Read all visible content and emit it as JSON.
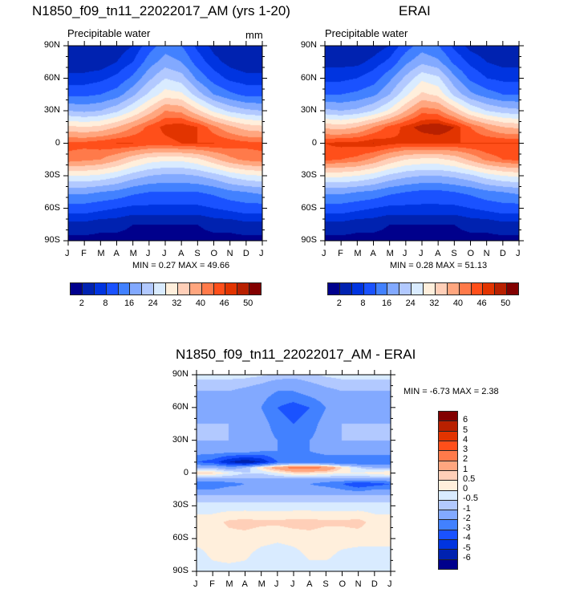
{
  "chart_data": [
    {
      "type": "heatmap",
      "title": "N1850_f09_tn11_22022017_AM (yrs 1-20)",
      "subtitle": "Precipitable water",
      "units": "mm",
      "stats": "MIN =   0.27 MAX =  49.66",
      "x_ticks": [
        "J",
        "F",
        "M",
        "A",
        "M",
        "J",
        "J",
        "A",
        "S",
        "O",
        "N",
        "D",
        "J"
      ],
      "y_ticks": [
        "90N",
        "60N",
        "30N",
        "0",
        "30S",
        "60S",
        "90S"
      ],
      "lats": [
        90,
        75,
        60,
        45,
        30,
        15,
        0,
        -15,
        -30,
        -45,
        -60,
        -75,
        -90
      ],
      "values": [
        [
          2,
          2,
          2,
          3,
          5,
          10,
          14,
          12,
          7,
          4,
          3,
          2
        ],
        [
          3,
          3,
          3,
          5,
          8,
          14,
          18,
          16,
          10,
          6,
          4,
          3
        ],
        [
          6,
          6,
          7,
          9,
          13,
          19,
          24,
          22,
          15,
          10,
          7,
          6
        ],
        [
          11,
          11,
          12,
          14,
          19,
          25,
          30,
          29,
          22,
          16,
          13,
          11
        ],
        [
          20,
          19,
          20,
          23,
          28,
          34,
          40,
          39,
          33,
          27,
          23,
          21
        ],
        [
          33,
          32,
          33,
          36,
          40,
          44,
          47,
          48,
          46,
          41,
          37,
          34
        ],
        [
          44,
          44,
          45,
          46,
          46,
          45,
          45,
          46,
          46,
          46,
          45,
          44
        ],
        [
          42,
          41,
          40,
          37,
          33,
          30,
          29,
          29,
          31,
          35,
          39,
          41
        ],
        [
          28,
          28,
          27,
          25,
          22,
          20,
          19,
          19,
          20,
          22,
          25,
          27
        ],
        [
          17,
          17,
          16,
          15,
          13,
          12,
          12,
          12,
          12,
          13,
          15,
          16
        ],
        [
          10,
          10,
          9,
          8,
          7,
          7,
          7,
          7,
          7,
          8,
          9,
          10
        ],
        [
          4,
          4,
          3,
          3,
          2,
          2,
          2,
          2,
          2,
          3,
          3,
          4
        ],
        [
          1,
          1,
          1,
          1,
          1,
          1,
          1,
          1,
          1,
          1,
          1,
          1
        ]
      ],
      "levels": [
        2,
        5,
        8,
        12,
        16,
        20,
        24,
        28,
        32,
        36,
        40,
        43,
        46,
        48,
        50
      ],
      "colorbar_labels": [
        "2",
        "8",
        "16",
        "24",
        "32",
        "40",
        "46",
        "50"
      ]
    },
    {
      "type": "heatmap",
      "title": "ERAI",
      "subtitle": "Precipitable water",
      "stats": "MIN =   0.28 MAX =  51.13",
      "x_ticks": [
        "J",
        "F",
        "M",
        "A",
        "M",
        "J",
        "J",
        "A",
        "S",
        "O",
        "N",
        "D",
        "J"
      ],
      "y_ticks": [
        "90N",
        "60N",
        "30N",
        "0",
        "30S",
        "60S",
        "90S"
      ],
      "lats": [
        90,
        75,
        60,
        45,
        30,
        15,
        0,
        -15,
        -30,
        -45,
        -60,
        -75,
        -90
      ],
      "values": [
        [
          2,
          2,
          2,
          3,
          5,
          10,
          14,
          12,
          7,
          4,
          3,
          2
        ],
        [
          4,
          4,
          4,
          6,
          9,
          15,
          19,
          17,
          11,
          7,
          5,
          4
        ],
        [
          7,
          7,
          8,
          10,
          15,
          21,
          27,
          25,
          17,
          11,
          8,
          7
        ],
        [
          12,
          12,
          13,
          15,
          20,
          27,
          33,
          31,
          23,
          17,
          14,
          12
        ],
        [
          21,
          20,
          21,
          24,
          29,
          36,
          42,
          41,
          35,
          28,
          24,
          22
        ],
        [
          35,
          34,
          36,
          40,
          44,
          47,
          49,
          50,
          48,
          43,
          39,
          36
        ],
        [
          46,
          47,
          47,
          48,
          47,
          46,
          46,
          46,
          46,
          46,
          46,
          46
        ],
        [
          44,
          43,
          42,
          39,
          35,
          32,
          31,
          31,
          33,
          37,
          41,
          43
        ],
        [
          29,
          29,
          28,
          26,
          23,
          21,
          20,
          20,
          21,
          23,
          26,
          28
        ],
        [
          17,
          17,
          16,
          15,
          13,
          12,
          11,
          11,
          12,
          13,
          15,
          16
        ],
        [
          10,
          10,
          9,
          8,
          7,
          7,
          7,
          7,
          7,
          8,
          9,
          10
        ],
        [
          4,
          4,
          3,
          3,
          2,
          2,
          2,
          2,
          2,
          3,
          3,
          4
        ],
        [
          1,
          1,
          1,
          1,
          1,
          1,
          1,
          1,
          1,
          1,
          1,
          1
        ]
      ],
      "levels": [
        2,
        5,
        8,
        12,
        16,
        20,
        24,
        28,
        32,
        36,
        40,
        43,
        46,
        48,
        50
      ],
      "colorbar_labels": [
        "2",
        "8",
        "16",
        "24",
        "32",
        "40",
        "46",
        "50"
      ]
    },
    {
      "type": "heatmap",
      "title": "N1850_f09_tn11_22022017_AM - ERAI",
      "stats": "MIN =  -6.73 MAX =   2.38",
      "x_ticks": [
        "J",
        "F",
        "M",
        "A",
        "M",
        "J",
        "J",
        "A",
        "S",
        "O",
        "N",
        "D",
        "J"
      ],
      "y_ticks": [
        "90N",
        "60N",
        "30N",
        "0",
        "30S",
        "60S",
        "90S"
      ],
      "lats": [
        90,
        75,
        60,
        45,
        30,
        20,
        10,
        5,
        0,
        -5,
        -10,
        -15,
        -20,
        -30,
        -45,
        -60,
        -75,
        -90
      ],
      "values": [
        [
          -0.3,
          -0.3,
          -0.3,
          -0.3,
          -0.4,
          -0.6,
          -0.7,
          -0.6,
          -0.4,
          -0.3,
          -0.3,
          -0.3
        ],
        [
          -1,
          -1,
          -1,
          -1.2,
          -1.5,
          -2,
          -2,
          -1.5,
          -1.2,
          -1,
          -1,
          -1
        ],
        [
          -1.5,
          -1.5,
          -1.5,
          -1.5,
          -2,
          -3,
          -3.5,
          -3,
          -2,
          -1.5,
          -1.5,
          -1.5
        ],
        [
          -1,
          -1,
          -1,
          -1.2,
          -1.5,
          -2.5,
          -3,
          -2.5,
          -1.5,
          -1,
          -1,
          -1
        ],
        [
          -1,
          -1,
          -1,
          -1,
          -1.5,
          -2,
          -2.2,
          -2,
          -1.5,
          -1,
          -1,
          -1
        ],
        [
          -1.5,
          -1.5,
          -1.5,
          -1.5,
          -2,
          -2,
          -2,
          -2,
          -1.5,
          -1.5,
          -1.5,
          -1.5
        ],
        [
          -3,
          -3.5,
          -5,
          -6,
          -5,
          -3,
          -3,
          -3,
          -3,
          -3,
          -3,
          -3
        ],
        [
          -1,
          -1,
          -1.5,
          -1,
          0.5,
          1.5,
          2.5,
          2.5,
          2,
          0.5,
          -0.5,
          -1
        ],
        [
          0.5,
          0.5,
          0,
          -0.5,
          -0.5,
          0,
          0.5,
          0.5,
          0.3,
          0,
          0,
          0.3
        ],
        [
          -1,
          -1,
          -1,
          -1,
          -1,
          -1,
          -1,
          -1,
          -1,
          -1,
          -1,
          -1
        ],
        [
          -3,
          -3,
          -2.5,
          -2,
          -2,
          -2,
          -2,
          -2,
          -2.5,
          -3,
          -4,
          -3.5
        ],
        [
          -2,
          -2,
          -1.5,
          -1.5,
          -1.5,
          -1.5,
          -1.5,
          -1.5,
          -1.5,
          -2,
          -2.5,
          -2
        ],
        [
          -1,
          -1,
          -1,
          -1,
          -1,
          -1,
          -1,
          -1,
          -1,
          -1,
          -1,
          -1
        ],
        [
          -0.3,
          -0.3,
          -0.3,
          -0.3,
          -0.3,
          -0.3,
          -0.3,
          -0.3,
          -0.3,
          -0.3,
          -0.3,
          -0.3
        ],
        [
          0.3,
          0.3,
          0.6,
          0.7,
          0.6,
          0.6,
          0.7,
          0.7,
          0.6,
          0.6,
          0.7,
          0.3
        ],
        [
          0.2,
          0.2,
          0.3,
          0.3,
          0.2,
          0.1,
          0.2,
          0.3,
          0.2,
          0.2,
          0.2,
          0.2
        ],
        [
          -0.2,
          0.1,
          0.2,
          0.1,
          -0.2,
          -0.3,
          -0.2,
          0.1,
          0.1,
          -0.1,
          -0.2,
          -0.2
        ],
        [
          -0.2,
          -0.2,
          -0.2,
          -0.2,
          -0.2,
          -0.2,
          -0.2,
          -0.2,
          -0.2,
          -0.2,
          -0.2,
          -0.2
        ]
      ],
      "levels": [
        -6,
        -5,
        -4,
        -3,
        -2,
        -1,
        -0.5,
        0,
        0.5,
        1,
        2,
        3,
        4,
        5,
        6
      ],
      "colorbar_labels": [
        "6",
        "5",
        "4",
        "3",
        "2",
        "1",
        "0.5",
        "0",
        "-0.5",
        "-1",
        "-2",
        "-3",
        "-4",
        "-5",
        "-6"
      ]
    }
  ],
  "colors": {
    "abs": [
      "#00008c",
      "#0022b0",
      "#0034e0",
      "#1a52ff",
      "#4281ff",
      "#82a9ff",
      "#b2c9ff",
      "#d9ebff",
      "#ffefdc",
      "#ffcfb8",
      "#ffa67f",
      "#ff7a4a",
      "#ff4f1a",
      "#e23400",
      "#b82000",
      "#820000"
    ],
    "diff": [
      "#00008c",
      "#0022b0",
      "#0034e0",
      "#1a52ff",
      "#4281ff",
      "#82a9ff",
      "#b2c9ff",
      "#d9ebff",
      "#ffefdc",
      "#ffcfb8",
      "#ffa67f",
      "#ff7a4a",
      "#ff4f1a",
      "#e23400",
      "#b82000",
      "#820000"
    ]
  }
}
